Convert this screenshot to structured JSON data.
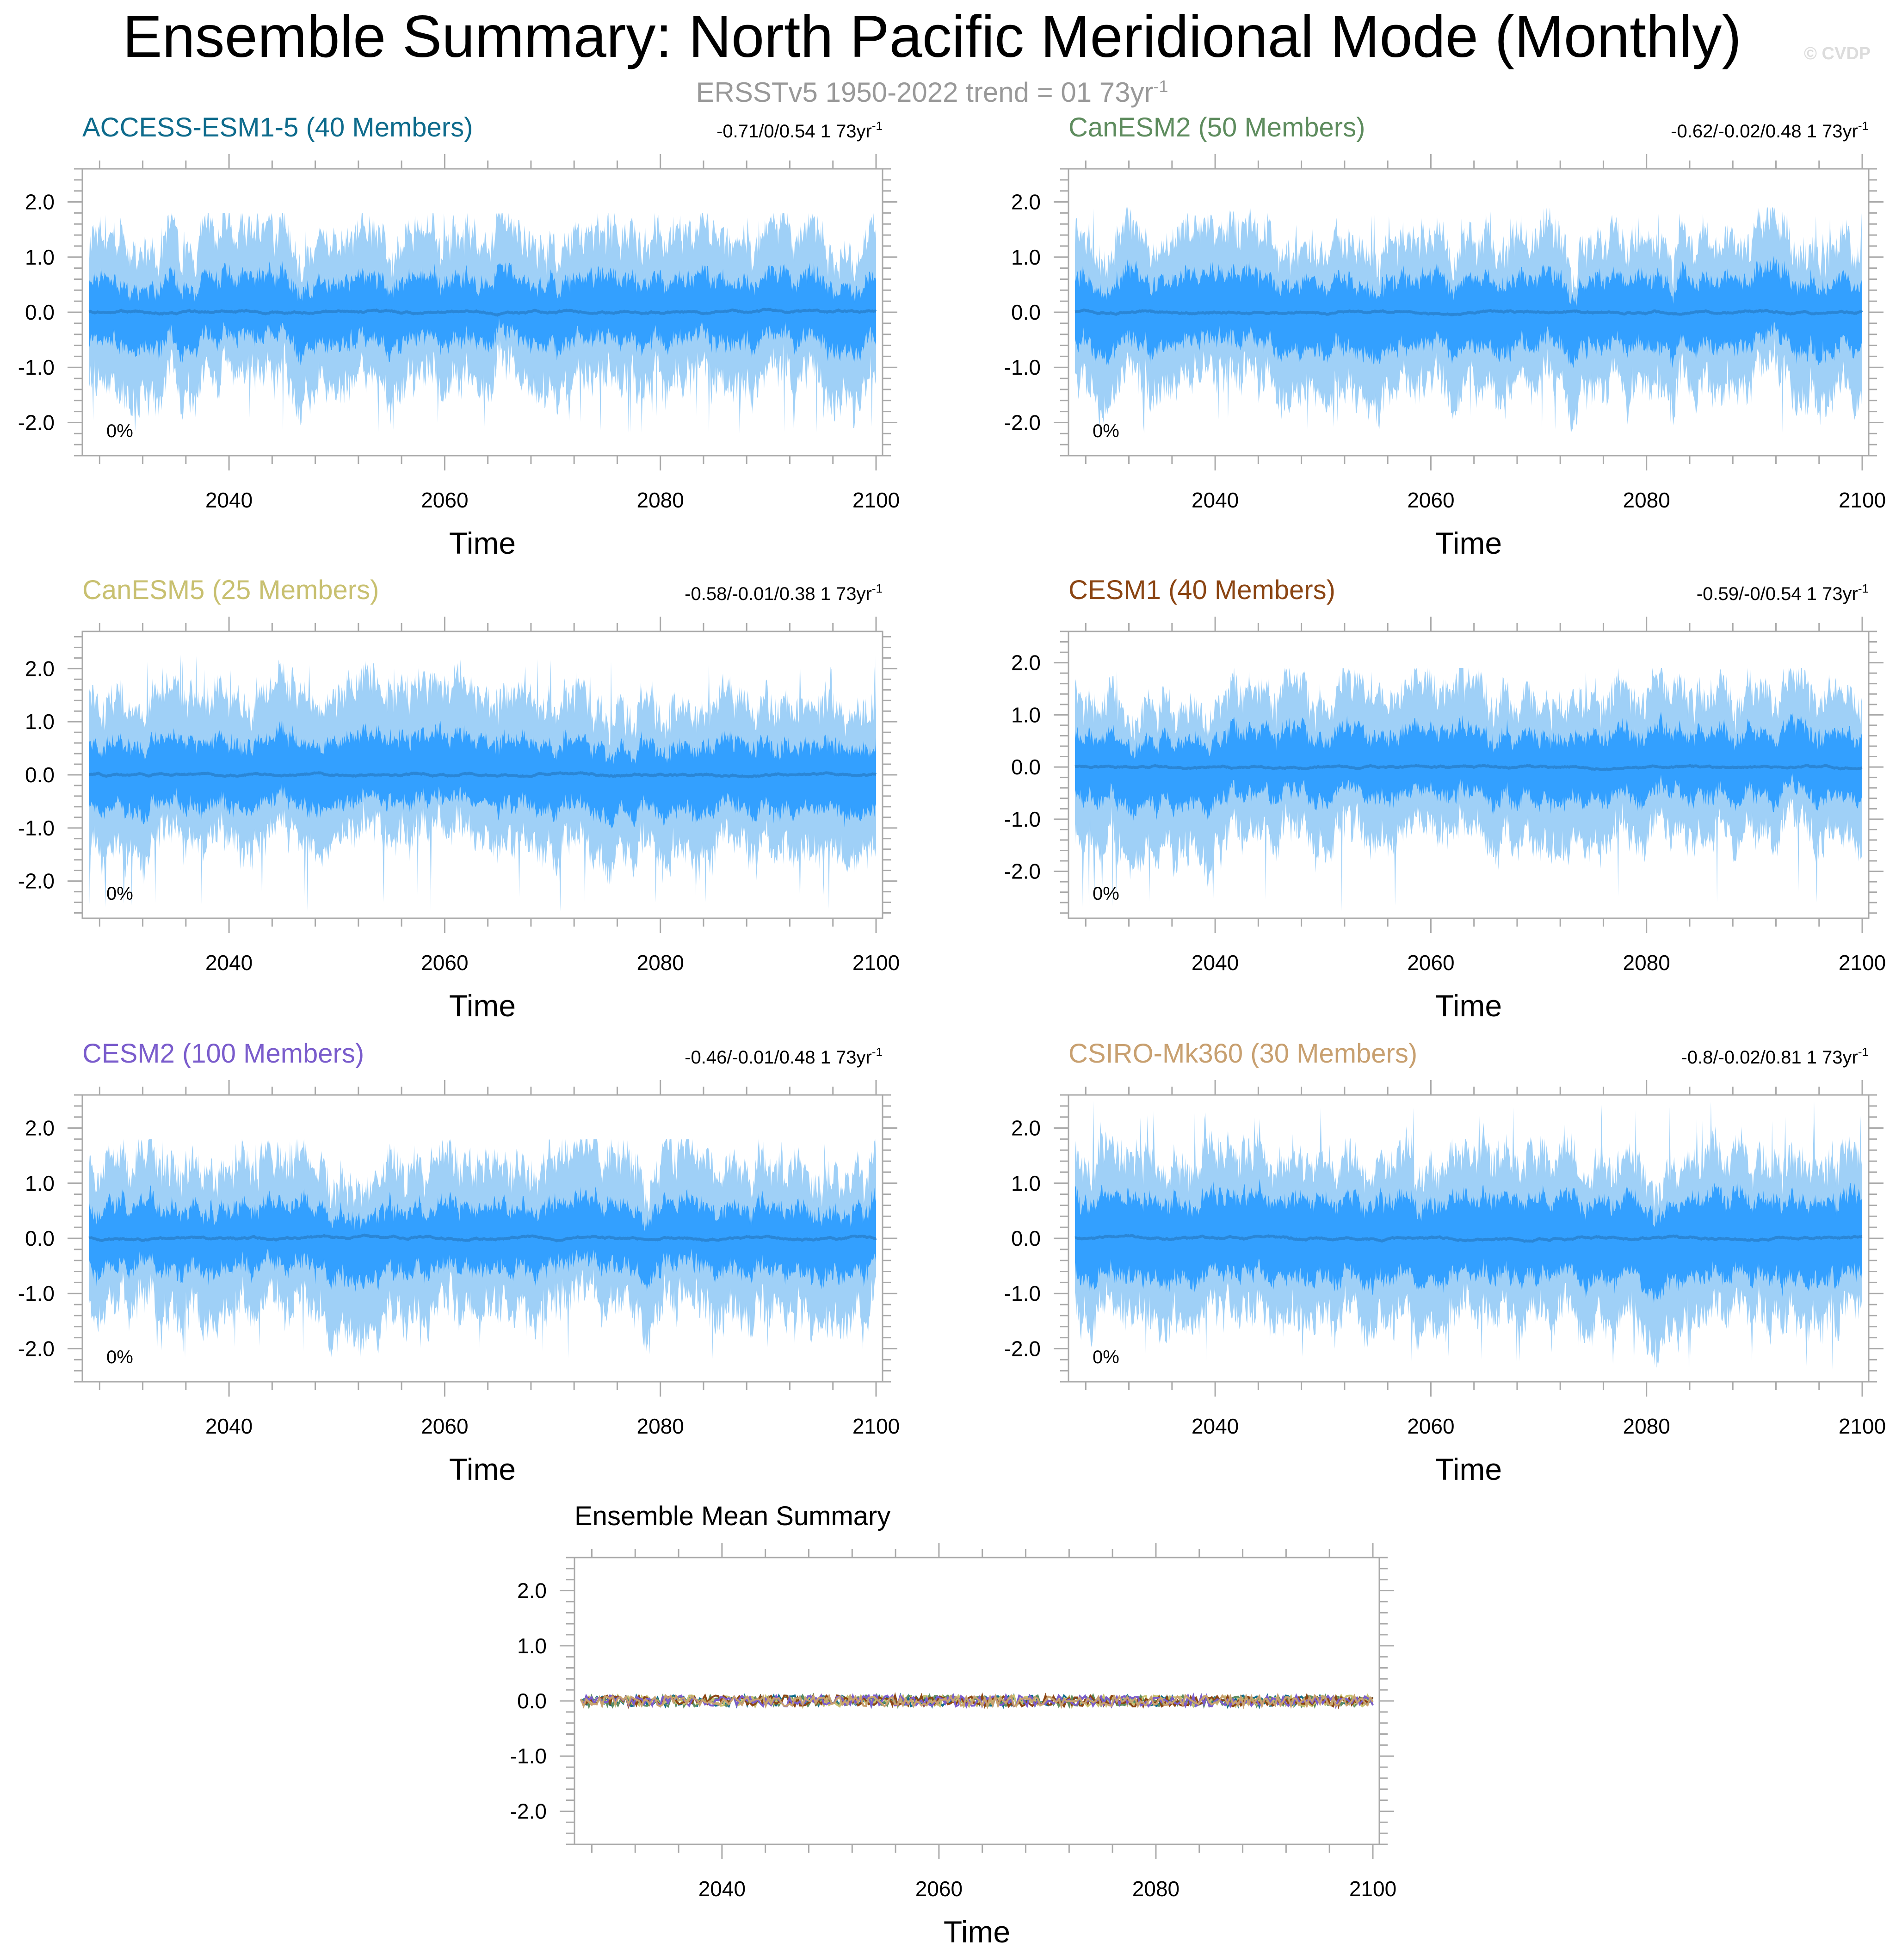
{
  "header": {
    "title": "Ensemble Summary: North Pacific Meridional Mode (Monthly)",
    "subtitle": "ERSSTv5 1950-2022 trend = 01 73yr",
    "subtitle_sup": "-1",
    "watermark": "© CVDP"
  },
  "colors": {
    "band_outer": "#9fd0f7",
    "band_inner": "#33a0ff",
    "mean_line": "#2a86d6",
    "frame": "#aaaaaa",
    "tick_label": "#000000"
  },
  "chart_data": [
    {
      "type": "area",
      "title": "ACCESS-ESM1-5 (40 Members)",
      "title_color": "#0e6b8c",
      "trend": "-0.71/0/0.54 1 73yr",
      "trend_sup": "-1",
      "percent_label": "0%",
      "xlabel": "Time",
      "x_range": [
        2027,
        2100
      ],
      "xticks": [
        2040,
        2060,
        2080,
        2100
      ],
      "ylim": [
        -2.6,
        2.6
      ],
      "yticks": [
        -2.0,
        -1.0,
        0.0,
        1.0,
        2.0
      ],
      "ytick_labels": [
        "-2.0",
        "-1.0",
        "0.0",
        "1.0",
        "2.0"
      ],
      "outer_band_typical": [
        -1.3,
        1.3
      ],
      "outer_band_extremes": [
        -2.2,
        1.8
      ],
      "inner_band_typical": [
        -0.55,
        0.55
      ],
      "ensemble_mean_typical": 0.0
    },
    {
      "type": "area",
      "title": "CanESM2 (50 Members)",
      "title_color": "#5e8c5e",
      "trend": "-0.62/-0.02/0.48 1 73yr",
      "trend_sup": "-1",
      "percent_label": "0%",
      "xlabel": "Time",
      "x_range": [
        2027,
        2100
      ],
      "xticks": [
        2040,
        2060,
        2080,
        2100
      ],
      "ylim": [
        -2.6,
        2.6
      ],
      "yticks": [
        -2.0,
        -1.0,
        0.0,
        1.0,
        2.0
      ],
      "ytick_labels": [
        "-2.0",
        "-1.0",
        "0.0",
        "1.0",
        "2.0"
      ],
      "outer_band_typical": [
        -1.3,
        1.3
      ],
      "outer_band_extremes": [
        -2.2,
        1.9
      ],
      "inner_band_typical": [
        -0.6,
        0.6
      ],
      "ensemble_mean_typical": 0.0
    },
    {
      "type": "area",
      "title": "CanESM5 (25 Members)",
      "title_color": "#c8c070",
      "trend": "-0.58/-0.01/0.38 1 73yr",
      "trend_sup": "-1",
      "percent_label": "0%",
      "xlabel": "Time",
      "x_range": [
        2027,
        2100
      ],
      "xticks": [
        2040,
        2060,
        2080,
        2100
      ],
      "ylim": [
        -2.7,
        2.7
      ],
      "yticks": [
        -2.0,
        -1.0,
        0.0,
        1.0,
        2.0
      ],
      "ytick_labels": [
        "-2.0",
        "-1.0",
        "0.0",
        "1.0",
        "2.0"
      ],
      "outer_band_typical": [
        -1.3,
        1.4
      ],
      "outer_band_extremes": [
        -2.6,
        2.3
      ],
      "inner_band_typical": [
        -0.6,
        0.6
      ],
      "ensemble_mean_typical": 0.0
    },
    {
      "type": "area",
      "title": "CESM1 (40 Members)",
      "title_color": "#8b4513",
      "trend": "-0.59/-0/0.54 1 73yr",
      "trend_sup": "-1",
      "percent_label": "0%",
      "xlabel": "Time",
      "x_range": [
        2027,
        2100
      ],
      "xticks": [
        2040,
        2060,
        2080,
        2100
      ],
      "ylim": [
        -2.9,
        2.6
      ],
      "yticks": [
        -2.0,
        -1.0,
        0.0,
        1.0,
        2.0
      ],
      "ytick_labels": [
        "-2.0",
        "-1.0",
        "0.0",
        "1.0",
        "2.0"
      ],
      "outer_band_typical": [
        -1.4,
        1.3
      ],
      "outer_band_extremes": [
        -2.8,
        1.9
      ],
      "inner_band_typical": [
        -0.6,
        0.6
      ],
      "ensemble_mean_typical": 0.0
    },
    {
      "type": "area",
      "title": "CESM2 (100 Members)",
      "title_color": "#7a5ccc",
      "trend": "-0.46/-0.01/0.48 1 73yr",
      "trend_sup": "-1",
      "percent_label": "0%",
      "xlabel": "Time",
      "x_range": [
        2027,
        2100
      ],
      "xticks": [
        2040,
        2060,
        2080,
        2100
      ],
      "ylim": [
        -2.6,
        2.6
      ],
      "yticks": [
        -2.0,
        -1.0,
        0.0,
        1.0,
        2.0
      ],
      "ytick_labels": [
        "-2.0",
        "-1.0",
        "0.0",
        "1.0",
        "2.0"
      ],
      "outer_band_typical": [
        -1.3,
        1.3
      ],
      "outer_band_extremes": [
        -2.2,
        1.8
      ],
      "inner_band_typical": [
        -0.55,
        0.55
      ],
      "ensemble_mean_typical": 0.0
    },
    {
      "type": "area",
      "title": "CSIRO-Mk360 (30 Members)",
      "title_color": "#c8a070",
      "trend": "-0.8/-0.02/0.81 1 73yr",
      "trend_sup": "-1",
      "percent_label": "0%",
      "xlabel": "Time",
      "x_range": [
        2027,
        2100
      ],
      "xticks": [
        2040,
        2060,
        2080,
        2100
      ],
      "ylim": [
        -2.6,
        2.6
      ],
      "yticks": [
        -2.0,
        -1.0,
        0.0,
        1.0,
        2.0
      ],
      "ytick_labels": [
        "-2.0",
        "-1.0",
        "0.0",
        "1.0",
        "2.0"
      ],
      "outer_band_typical": [
        -1.4,
        1.4
      ],
      "outer_band_extremes": [
        -2.4,
        2.5
      ],
      "inner_band_typical": [
        -0.7,
        0.7
      ],
      "ensemble_mean_typical": 0.0
    },
    {
      "type": "line",
      "title": "Ensemble Mean Summary",
      "title_color": "#000000",
      "xlabel": "Time",
      "x_range": [
        2027,
        2100
      ],
      "xticks": [
        2040,
        2060,
        2080,
        2100
      ],
      "ylim": [
        -2.6,
        2.6
      ],
      "yticks": [
        -2.0,
        -1.0,
        0.0,
        1.0,
        2.0
      ],
      "ytick_labels": [
        "-2.0",
        "-1.0",
        "0.0",
        "1.0",
        "2.0"
      ],
      "series": [
        {
          "name": "ACCESS-ESM1-5",
          "color": "#0e6b8c",
          "typical_range": [
            -0.1,
            0.1
          ]
        },
        {
          "name": "CanESM2",
          "color": "#5e8c5e",
          "typical_range": [
            -0.1,
            0.1
          ]
        },
        {
          "name": "CanESM5",
          "color": "#c8c070",
          "typical_range": [
            -0.1,
            0.1
          ]
        },
        {
          "name": "CESM1",
          "color": "#8b4513",
          "typical_range": [
            -0.1,
            0.1
          ]
        },
        {
          "name": "CESM2",
          "color": "#7a5ccc",
          "typical_range": [
            -0.1,
            0.1
          ]
        },
        {
          "name": "CSIRO-Mk360",
          "color": "#c8a070",
          "typical_range": [
            -0.1,
            0.1
          ]
        }
      ]
    }
  ]
}
